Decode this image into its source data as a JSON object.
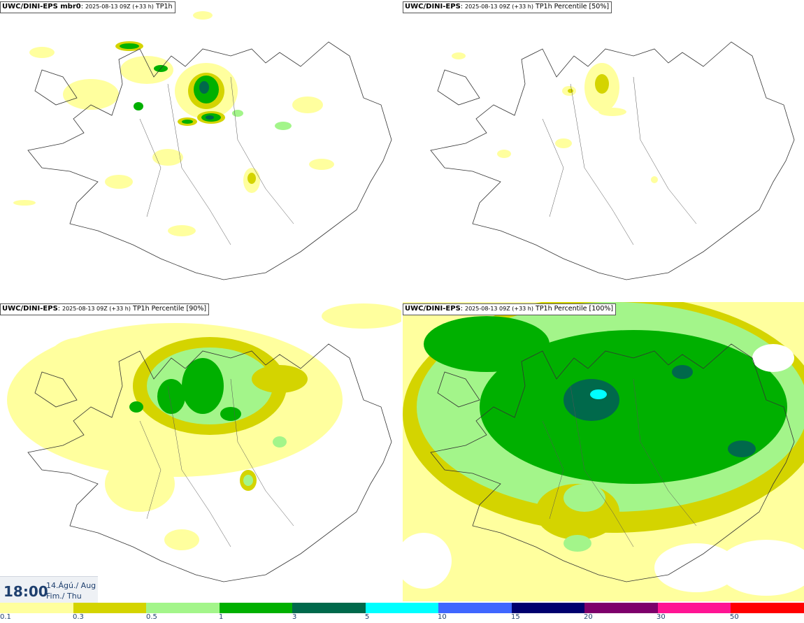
{
  "panels": [
    {
      "model": "UWC/DINI-EPS mbr0",
      "date": "2025-08-13 09Z (+33 h)",
      "field": "TP1h"
    },
    {
      "model": "UWC/DINI-EPS",
      "date": "2025-08-13 09Z (+33 h)",
      "field": "TP1h Percentile [50%]"
    },
    {
      "model": "UWC/DINI-EPS",
      "date": "2025-08-13 09Z (+33 h)",
      "field": "TP1h Percentile [90%]"
    },
    {
      "model": "UWC/DINI-EPS",
      "date": "2025-08-13 09Z (+33 h)",
      "field": "TP1h Percentile [100%]"
    }
  ],
  "valid_time": {
    "time": "18:00",
    "date_line": "14.Ágú./ Aug",
    "day_line": "Fim./ Thu"
  },
  "legend": {
    "ticks": [
      "0.1",
      "0.3",
      "0.5",
      "1",
      "3",
      "5",
      "10",
      "15",
      "20",
      "30",
      "50"
    ],
    "colors": [
      "#ffff9e",
      "#d4d400",
      "#a3f58a",
      "#00b000",
      "#00694b",
      "#00ffff",
      "#3f66ff",
      "#00006e",
      "#7d006b",
      "#ff1493",
      "#ff0000"
    ]
  },
  "precip_colors": {
    "light": "#ffff9e",
    "olive": "#d4d400",
    "lightgreen": "#a3f58a",
    "green": "#00b000",
    "dark": "#00694b",
    "cyan": "#00ffff"
  }
}
